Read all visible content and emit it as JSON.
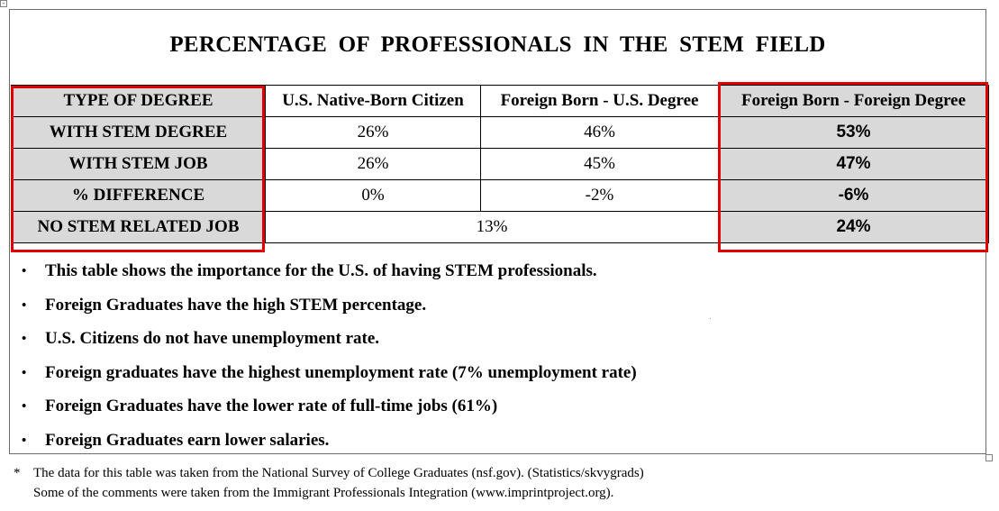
{
  "title": "PERCENTAGE OF PROFESSIONALS IN THE STEM FIELD",
  "table": {
    "headers": [
      "TYPE OF DEGREE",
      "U.S. Native-Born Citizen",
      "Foreign Born - U.S. Degree",
      "Foreign Born - Foreign Degree"
    ],
    "rows": [
      {
        "label": "WITH STEM DEGREE",
        "native": "26%",
        "fb_us": "46%",
        "fb_foreign": "53%"
      },
      {
        "label": "WITH STEM JOB",
        "native": "26%",
        "fb_us": "45%",
        "fb_foreign": "47%"
      },
      {
        "label": "% DIFFERENCE",
        "native": "0%",
        "fb_us": "-2%",
        "fb_foreign": "-6%"
      },
      {
        "label": "NO STEM RELATED JOB",
        "merged": "13%",
        "fb_foreign": "24%"
      }
    ]
  },
  "bullet_glyph": "•",
  "bullets": [
    "This table shows the importance for the U.S. of having STEM professionals.",
    "Foreign Graduates have the high STEM percentage.",
    "U.S. Citizens do not have unemployment rate.",
    "Foreign graduates have the highest unemployment rate (7% unemployment rate)",
    "Foreign Graduates have the lower rate of full-time jobs (61%)",
    "Foreign Graduates earn lower salaries."
  ],
  "footnote": {
    "marker": "*",
    "line1": "The data for this table was taken from the National Survey of College Graduates (nsf.gov). (Statistics/skvygrads)",
    "line2": "Some of the comments were taken from the Immigrant Professionals Integration (www.imprintproject.org)."
  },
  "colors": {
    "highlight": "#e00000",
    "shade": "#d9d9d9",
    "frame": "#6b6b6b"
  }
}
